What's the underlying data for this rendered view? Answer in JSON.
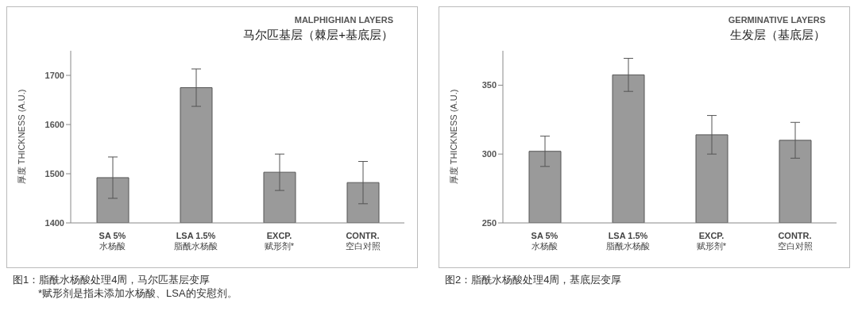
{
  "chart_data": [
    {
      "type": "bar",
      "title": "MALPHIGHIAN LAYERS",
      "subtitle": "马尔匹基层（棘层+基底层）",
      "ylabel": "厚度 THICKNESS (A.U.)",
      "categories": [
        "SA 5%\n水杨酸",
        "LSA 1.5%\n脂酰水杨酸",
        "EXCP.\n赋形剂*",
        "CONTR.\n空白对照"
      ],
      "values": [
        1492,
        1675,
        1503,
        1482
      ],
      "errors": [
        42,
        38,
        37,
        43
      ],
      "color": "#9a9a9a",
      "ylim": [
        1400,
        1750
      ],
      "yticks": [
        1400,
        1500,
        1600,
        1700
      ],
      "grid": false,
      "annotations": [
        "图1：脂酰水杨酸处理4周，马尔匹基层变厚",
        "*赋形剂是指未添加水杨酸、LSA的安慰剂。"
      ]
    },
    {
      "type": "bar",
      "title": "GERMINATIVE LAYERS",
      "subtitle": "生发层（基底层）",
      "ylabel": "厚度 THICKNESS (A.U.)",
      "categories": [
        "SA 5%\n水杨酸",
        "LSA 1.5%\n脂酰水杨酸",
        "EXCP.\n赋形剂*",
        "CONTR.\n空白对照"
      ],
      "values": [
        302,
        357.5,
        314,
        310
      ],
      "errors": [
        11,
        12,
        14,
        13
      ],
      "color": "#9a9a9a",
      "ylim": [
        250,
        375
      ],
      "yticks": [
        250,
        300,
        350
      ],
      "grid": false,
      "annotations": [
        "图2：脂酰水杨酸处理4周，基底层变厚"
      ]
    }
  ]
}
